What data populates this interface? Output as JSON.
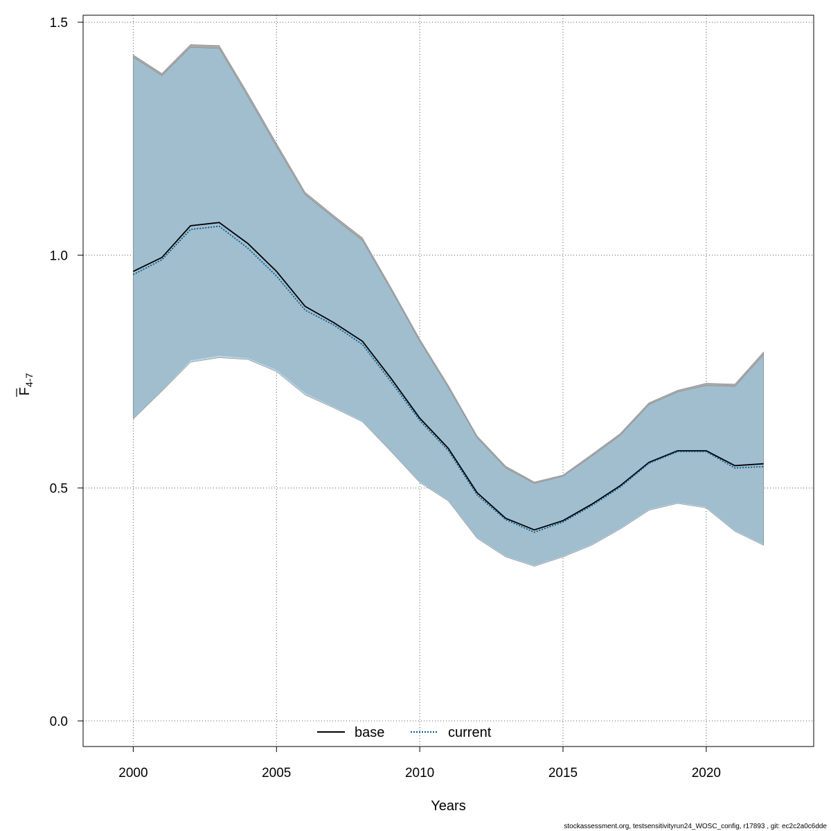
{
  "chart_data": {
    "type": "area",
    "xlabel": "Years",
    "ylabel_main": "F",
    "ylabel_sub": "4-7",
    "xlim": [
      1998.25,
      2023.75
    ],
    "ylim": [
      -0.055,
      1.515
    ],
    "x_ticks": [
      2000,
      2005,
      2010,
      2015,
      2020
    ],
    "x_tick_labels": [
      "2000",
      "2005",
      "2010",
      "2015",
      "2020"
    ],
    "y_ticks": [
      0.0,
      0.5,
      1.0,
      1.5
    ],
    "y_tick_labels": [
      "0.0",
      "0.5",
      "1.0",
      "1.5"
    ],
    "grid": true,
    "legend": {
      "position": "bottom-center",
      "entries": [
        {
          "name": "base",
          "style": "solid",
          "color": "#000000"
        },
        {
          "name": "current",
          "style": "dotted",
          "color": "#005b8c"
        }
      ]
    },
    "x": [
      2000,
      2001,
      2002,
      2003,
      2004,
      2005,
      2006,
      2007,
      2008,
      2009,
      2010,
      2011,
      2012,
      2013,
      2014,
      2015,
      2016,
      2017,
      2018,
      2019,
      2020,
      2021,
      2022
    ],
    "series": [
      {
        "name": "base",
        "color": "#000000",
        "values": [
          0.965,
          0.995,
          1.063,
          1.07,
          1.025,
          0.965,
          0.89,
          0.855,
          0.815,
          0.735,
          0.65,
          0.585,
          0.49,
          0.435,
          0.41,
          0.43,
          0.465,
          0.505,
          0.555,
          0.58,
          0.58,
          0.548,
          0.552
        ],
        "ci_lower": [
          0.65,
          0.71,
          0.775,
          0.785,
          0.78,
          0.755,
          0.705,
          0.675,
          0.645,
          0.58,
          0.515,
          0.475,
          0.395,
          0.355,
          0.335,
          0.355,
          0.38,
          0.415,
          0.455,
          0.47,
          0.46,
          0.41,
          0.38
        ],
        "ci_upper": [
          1.43,
          1.39,
          1.452,
          1.45,
          1.347,
          1.24,
          1.135,
          1.085,
          1.037,
          0.93,
          0.82,
          0.72,
          0.612,
          0.547,
          0.513,
          0.528,
          0.572,
          0.617,
          0.683,
          0.71,
          0.725,
          0.723,
          0.792
        ]
      },
      {
        "name": "current",
        "color": "#005b8c",
        "values": [
          0.958,
          0.99,
          1.055,
          1.062,
          1.015,
          0.955,
          0.882,
          0.85,
          0.808,
          0.728,
          0.645,
          0.58,
          0.485,
          0.432,
          0.405,
          0.427,
          0.462,
          0.502,
          0.553,
          0.578,
          0.578,
          0.543,
          0.546
        ],
        "ci_lower": [
          0.648,
          0.708,
          0.77,
          0.78,
          0.776,
          0.75,
          0.7,
          0.672,
          0.642,
          0.578,
          0.512,
          0.472,
          0.392,
          0.352,
          0.332,
          0.352,
          0.377,
          0.412,
          0.452,
          0.467,
          0.457,
          0.407,
          0.377
        ],
        "ci_upper": [
          1.425,
          1.385,
          1.446,
          1.444,
          1.34,
          1.233,
          1.13,
          1.08,
          1.031,
          0.925,
          0.815,
          0.715,
          0.608,
          0.543,
          0.51,
          0.525,
          0.568,
          0.613,
          0.679,
          0.706,
          0.72,
          0.718,
          0.786
        ]
      }
    ],
    "colors": {
      "band_base": "#aaaaaa",
      "band_current": "#9dc4db",
      "band_overlap": "#a6c3d4"
    }
  },
  "footnote": "stockassessment.org, testsensitivityrun24_WOSC_config, r17893 , git: ec2c2a0c6dde"
}
